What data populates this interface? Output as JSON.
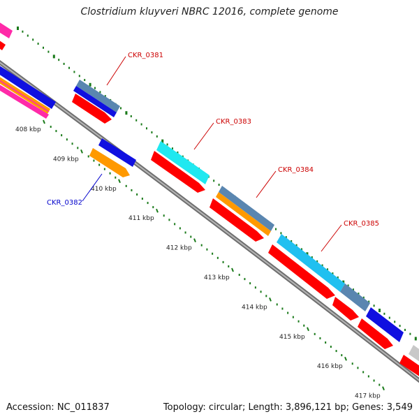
{
  "title": "Clostridium kluyveri NBRC 12016, complete genome",
  "footer": {
    "accession": "Accession: NC_011837",
    "summary": "Topology: circular; Length: 3,896,121 bp; Genes: 3,549"
  },
  "ticks": [
    {
      "label": "408 kbp",
      "pos": 408
    },
    {
      "label": "409 kbp",
      "pos": 409
    },
    {
      "label": "410 kbp",
      "pos": 410
    },
    {
      "label": "411 kbp",
      "pos": 411
    },
    {
      "label": "412 kbp",
      "pos": 412
    },
    {
      "label": "413 kbp",
      "pos": 413
    },
    {
      "label": "414 kbp",
      "pos": 414
    },
    {
      "label": "415 kbp",
      "pos": 415
    },
    {
      "label": "416 kbp",
      "pos": 416
    },
    {
      "label": "417 kbp",
      "pos": 417
    }
  ],
  "gene_labels": [
    {
      "name": "CKR_0381",
      "color": "#cc0000"
    },
    {
      "name": "CKR_0382",
      "color": "#0000cc"
    },
    {
      "name": "CKR_0383",
      "color": "#cc0000"
    },
    {
      "name": "CKR_0384",
      "color": "#cc0000"
    },
    {
      "name": "CKR_0385",
      "color": "#cc0000"
    }
  ],
  "colors": {
    "backbone": "#8a8a8a",
    "ticks": "#1a7a1a",
    "cds": "#ff0000",
    "blue": "#1010e0",
    "steel": "#5a86b0",
    "cyan": "#20e8f0",
    "skyblue": "#20c0f0",
    "orange": "#ff9900",
    "pink": "#ff2aa8",
    "gray": "#c8c8c8"
  }
}
